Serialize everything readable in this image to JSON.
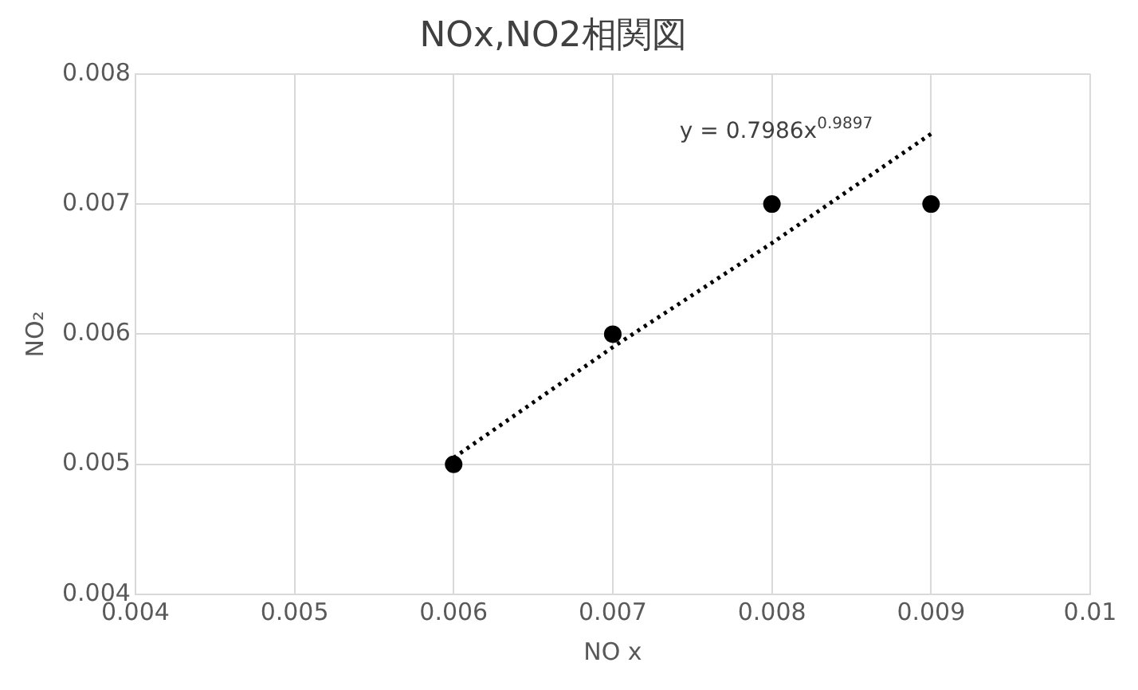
{
  "chart_data": {
    "type": "scatter",
    "title": "NOx,NO2相関図",
    "xlabel": "NO x",
    "ylabel": "NO₂",
    "xlim": [
      0.004,
      0.01
    ],
    "xticks": [
      0.004,
      0.005,
      0.006,
      0.007,
      0.008,
      0.009,
      0.01
    ],
    "ylim": [
      0.004,
      0.008
    ],
    "yticks": [
      0.004,
      0.005,
      0.006,
      0.007,
      0.008
    ],
    "grid": true,
    "legend": false,
    "series": [
      {
        "type": "scatter",
        "color": "#000000",
        "marker": "circle",
        "x": [
          0.006,
          0.007,
          0.008,
          0.009
        ],
        "values": [
          0.005,
          0.006,
          0.007,
          0.007
        ]
      },
      {
        "type": "line",
        "color": "#000000",
        "marker": "none",
        "line_style": "dotted",
        "x": [
          0.006,
          0.007,
          0.008,
          0.009
        ],
        "values": [
          0.00505,
          0.0059,
          0.0067,
          0.00754
        ]
      }
    ],
    "annotations": [
      "y = 0.7986x$^{0.9897}$"
    ]
  }
}
